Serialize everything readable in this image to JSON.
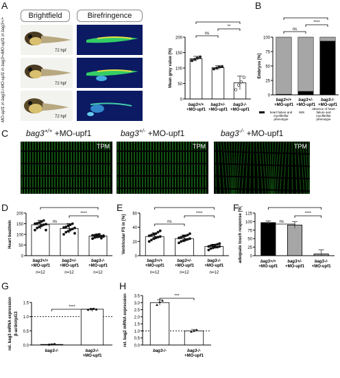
{
  "panels": {
    "A": {
      "letter": "A",
      "header_brightfield": "Brightfield",
      "header_birefringence": "Birefringence",
      "row_labels": [
        "MO-upf1 in bag3+/+",
        "MO-upf1 in bag3+/-",
        "MO-upf1 in bag3-/-"
      ],
      "hpf_label": "72 hpf",
      "chart": {
        "type": "bar",
        "ylabel": "Mean grey value (%)",
        "categories": [
          "bag3+/+ +MO-upf1",
          "bag3+/- +MO-upf1",
          "bag3-/- +MO-upf1"
        ],
        "values": [
          130,
          101,
          52
        ],
        "errors": [
          8,
          7,
          22
        ],
        "ylim": [
          0,
          200
        ],
        "yticks": [
          0,
          50,
          100,
          150,
          200
        ],
        "sig": [
          {
            "pair": [
              0,
              1
            ],
            "label": "ns"
          },
          {
            "pair": [
              1,
              2
            ],
            "label": "**"
          },
          {
            "pair": [
              0,
              2
            ],
            "label": "***"
          }
        ]
      }
    },
    "B": {
      "letter": "B",
      "chart": {
        "type": "bar",
        "ylabel": "Embryos [%]",
        "categories": [
          "bag3+/+ +MO-upf1",
          "bag3+/- +MO-upf1",
          "bag3-/- +MO-upf1"
        ],
        "series": [
          {
            "name": "heart failure and myofibrillar phenotype",
            "values": [
              1,
              6,
              93
            ],
            "color": "#000000"
          },
          {
            "name": "absence of heart failure and myofibrillar phenotype",
            "values": [
              99,
              94,
              7
            ],
            "color": "#a6a6a6"
          }
        ],
        "ylim": [
          0,
          100
        ],
        "yticks": [
          0,
          25,
          50,
          75,
          100
        ],
        "sig": [
          {
            "pair": [
              0,
              1
            ],
            "label": "ns"
          },
          {
            "pair": [
              1,
              2
            ],
            "label": "****"
          },
          {
            "pair": [
              0,
              2
            ],
            "label": "****"
          }
        ]
      }
    },
    "C": {
      "letter": "C",
      "titles": [
        {
          "genotype": "bag3",
          "sup": "+/+",
          "suffix": " +MO-upf1"
        },
        {
          "genotype": "bag3",
          "sup": "+/-",
          "suffix": " +MO-upf1"
        },
        {
          "genotype": "bag3",
          "sup": "-/-",
          "suffix": " +MO-upf1"
        }
      ],
      "image_label": "TPM"
    },
    "D": {
      "letter": "D",
      "chart": {
        "type": "scatter",
        "ylabel": "Heart beat/min",
        "categories": [
          "bag3+/+ +MO-upf1",
          "bag3+/- +MO-upf1",
          "bag3-/- +MO-upf1"
        ],
        "means": [
          145,
          128,
          92
        ],
        "errors": [
          20,
          22,
          10
        ],
        "points": [
          [
            120,
            130,
            135,
            140,
            145,
            148,
            150,
            152,
            155,
            160,
            165,
            120
          ],
          [
            100,
            110,
            115,
            120,
            125,
            130,
            132,
            135,
            140,
            145,
            150,
            105
          ],
          [
            80,
            85,
            88,
            90,
            92,
            94,
            95,
            96,
            98,
            100,
            82,
            90
          ]
        ],
        "ylim": [
          0,
          200
        ],
        "yticks": [
          0,
          50,
          100,
          150,
          200
        ],
        "n_labels": [
          "n=12",
          "n=12",
          "n=12"
        ],
        "sig": [
          {
            "pair": [
              0,
              1
            ],
            "label": "ns"
          },
          {
            "pair": [
              1,
              2
            ],
            "label": "****"
          },
          {
            "pair": [
              0,
              2
            ],
            "label": "****"
          }
        ]
      }
    },
    "E": {
      "letter": "E",
      "chart": {
        "type": "scatter",
        "ylabel": "Ventricular FS in [%]",
        "categories": [
          "bag3+/+ +MO-upf1",
          "bag3+/- +MO-upf1",
          "bag3-/- +MO-upf1"
        ],
        "means": [
          27,
          24,
          13
        ],
        "errors": [
          5,
          5,
          3
        ],
        "points": [
          [
            20,
            22,
            24,
            25,
            26,
            27,
            28,
            29,
            30,
            31,
            33,
            35
          ],
          [
            18,
            20,
            21,
            22,
            23,
            24,
            25,
            26,
            27,
            28,
            29,
            31
          ],
          [
            8,
            10,
            11,
            12,
            12,
            13,
            13,
            14,
            14,
            15,
            16,
            17
          ]
        ],
        "ylim": [
          0,
          60
        ],
        "yticks": [
          0,
          20,
          40,
          60
        ],
        "n_labels": [
          "n=12",
          "n=12",
          "n=12"
        ],
        "sig": [
          {
            "pair": [
              0,
              1
            ],
            "label": "ns"
          },
          {
            "pair": [
              1,
              2
            ],
            "label": "****"
          },
          {
            "pair": [
              0,
              2
            ],
            "label": "****"
          }
        ]
      }
    },
    "F": {
      "letter": "F",
      "chart": {
        "type": "bar",
        "ylabel": "adequate touch response [%]",
        "categories": [
          "bag3+/+ +MO-upf1",
          "bag3+/- +MO-upf1",
          "bag3-/- +MO-upf1"
        ],
        "values": [
          97,
          90,
          5
        ],
        "errors": [
          5,
          10,
          12
        ],
        "colors": [
          "#000000",
          "#a6a6a6",
          "#a6a6a6"
        ],
        "ylim": [
          0,
          125
        ],
        "yticks": [
          0,
          25,
          50,
          75,
          100,
          125
        ],
        "sig": [
          {
            "pair": [
              0,
              1
            ],
            "label": "ns"
          },
          {
            "pair": [
              1,
              2
            ],
            "label": "****"
          },
          {
            "pair": [
              0,
              2
            ],
            "label": "****"
          }
        ]
      }
    },
    "G": {
      "letter": "G",
      "chart": {
        "type": "bar",
        "ylabel": "rel. bag3 mRNA expression",
        "ylabel2": "β-actin/rpl13",
        "categories": [
          "bag3-/-",
          "bag3-/- +MO-upf1"
        ],
        "values": [
          0.02,
          1.26
        ],
        "errors": [
          0.01,
          0.03
        ],
        "ylim": [
          0,
          1.5
        ],
        "yticks": [
          "0.0",
          "0.5",
          "1.0",
          "1.5"
        ],
        "refline": 1.0,
        "sig": [
          {
            "pair": [
              0,
              1
            ],
            "label": "****"
          }
        ]
      }
    },
    "H": {
      "letter": "H",
      "chart": {
        "type": "bar",
        "ylabel": "rel. bag2 mRNA expression",
        "categories": [
          "bag3-/-",
          "bag3-/- +MO-upf1"
        ],
        "values": [
          3.0,
          1.0
        ],
        "errors": [
          0.2,
          0.1
        ],
        "ylim": [
          0,
          3.5
        ],
        "yticks": [
          "0.0",
          "0.5",
          "1.0",
          "1.5",
          "2.0",
          "2.5",
          "3.0",
          "3.5"
        ],
        "refline": 1.0,
        "sig": [
          {
            "pair": [
              0,
              1
            ],
            "label": "***"
          }
        ]
      }
    }
  },
  "legend_B": [
    "heart failure and myofibrillar phenotype",
    "absence of heart failure and myofibrillar phenotype"
  ]
}
